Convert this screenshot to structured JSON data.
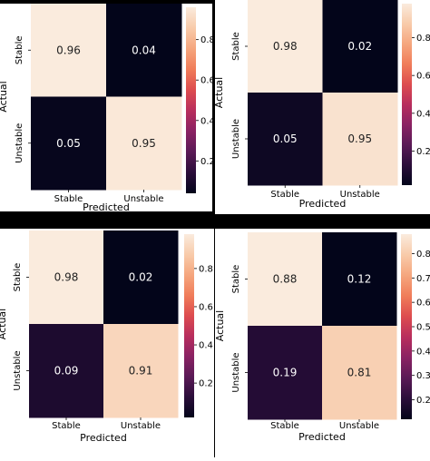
{
  "colors": {
    "background": "#ffffff",
    "divider": "#000000",
    "colormap": [
      "#03051a",
      "#2b0e3a",
      "#5a1a56",
      "#8a2263",
      "#b82e5d",
      "#dd4c4f",
      "#f07d5a",
      "#f5a67e",
      "#f8cbaa",
      "#faebdd"
    ],
    "text_on_dark": "#ffffff",
    "text_on_light": "#222222"
  },
  "chart_data": [
    {
      "type": "heatmap",
      "title": "",
      "xlabel": "Predicted",
      "ylabel": "Actual",
      "x_categories": [
        "Stable",
        "Unstable"
      ],
      "y_categories": [
        "Stable",
        "Unstable"
      ],
      "values": [
        [
          0.96,
          0.04
        ],
        [
          0.05,
          0.95
        ]
      ],
      "value_labels": [
        [
          "0.96",
          "0.04"
        ],
        [
          "0.05",
          "0.95"
        ]
      ],
      "colorbar": {
        "range": [
          0.04,
          0.96
        ],
        "ticks": [
          0.2,
          0.4,
          0.6,
          0.8
        ],
        "tick_labels": [
          "0.2",
          "0.4",
          "0.6",
          "0.8"
        ]
      }
    },
    {
      "type": "heatmap",
      "title": "",
      "xlabel": "Predicted",
      "ylabel": "Actual",
      "x_categories": [
        "Stable",
        "Unstable"
      ],
      "y_categories": [
        "Stable",
        "Unstable"
      ],
      "values": [
        [
          0.98,
          0.02
        ],
        [
          0.05,
          0.95
        ]
      ],
      "value_labels": [
        [
          "0.98",
          "0.02"
        ],
        [
          "0.05",
          "0.95"
        ]
      ],
      "colorbar": {
        "range": [
          0.02,
          0.98
        ],
        "ticks": [
          0.2,
          0.4,
          0.6,
          0.8
        ],
        "tick_labels": [
          "0.2",
          "0.4",
          "0.6",
          "0.8"
        ]
      }
    },
    {
      "type": "heatmap",
      "title": "",
      "xlabel": "Predicted",
      "ylabel": "Actual",
      "x_categories": [
        "Stable",
        "Unstable"
      ],
      "y_categories": [
        "Stable",
        "Unstable"
      ],
      "values": [
        [
          0.98,
          0.02
        ],
        [
          0.09,
          0.91
        ]
      ],
      "value_labels": [
        [
          "0.98",
          "0.02"
        ],
        [
          "0.09",
          "0.91"
        ]
      ],
      "colorbar": {
        "range": [
          0.02,
          0.98
        ],
        "ticks": [
          0.2,
          0.4,
          0.6,
          0.8
        ],
        "tick_labels": [
          "0.2",
          "0.4",
          "0.6",
          "0.8"
        ]
      }
    },
    {
      "type": "heatmap",
      "title": "",
      "xlabel": "Predicted",
      "ylabel": "Actual",
      "x_categories": [
        "Stable",
        "Unstable"
      ],
      "y_categories": [
        "Stable",
        "Unstable"
      ],
      "values": [
        [
          0.88,
          0.12
        ],
        [
          0.19,
          0.81
        ]
      ],
      "value_labels": [
        [
          "0.88",
          "0.12"
        ],
        [
          "0.19",
          "0.81"
        ]
      ],
      "colorbar": {
        "range": [
          0.12,
          0.88
        ],
        "ticks": [
          0.2,
          0.3,
          0.4,
          0.5,
          0.6,
          0.7,
          0.8
        ],
        "tick_labels": [
          "0.2",
          "0.3",
          "0.4",
          "0.5",
          "0.6",
          "0.7",
          "0.8"
        ]
      }
    }
  ]
}
